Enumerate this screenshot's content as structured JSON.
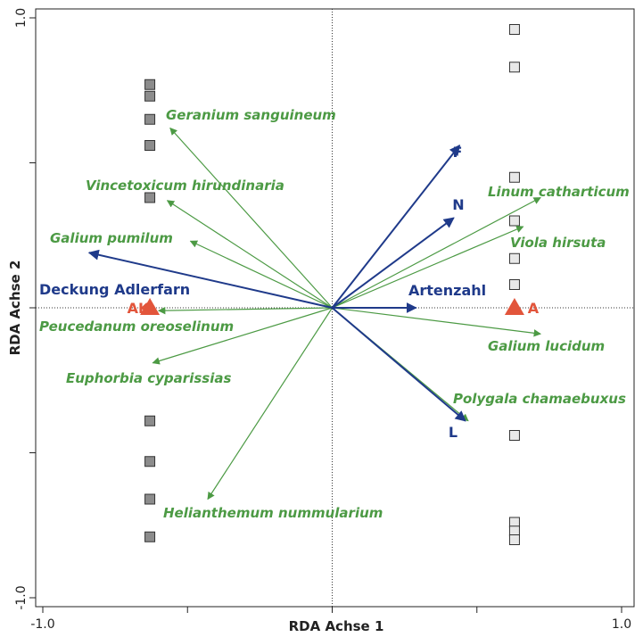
{
  "chart_data": {
    "type": "scatter",
    "title": "",
    "xlabel": "RDA Achse 1",
    "ylabel": "RDA Achse 2",
    "xlim": [
      -1.0,
      1.0
    ],
    "ylim": [
      -1.0,
      1.0
    ],
    "x_tick_values": [
      -1.0,
      -0.5,
      0,
      0.5,
      1.0
    ],
    "y_tick_values": [
      -1.0,
      -0.5,
      0,
      0.5,
      1.0
    ],
    "x_tick_labels": [
      "-1.0",
      "",
      "",
      "",
      "1.0"
    ],
    "y_tick_labels": [
      "-1.0",
      "",
      "",
      "",
      "1.0"
    ],
    "grid": false,
    "colors": {
      "species": "#4c9a44",
      "environment": "#1f3a8a",
      "centroid": "#e2553b",
      "site_group_ak": "#8c8c8c",
      "site_group_a": "#e8e8e8"
    },
    "species_arrows": [
      {
        "name": "Geranium sanguineum",
        "x": -0.56,
        "y": 0.62
      },
      {
        "name": "Vincetoxicum hirundinaria",
        "x": -0.57,
        "y": 0.37
      },
      {
        "name": "Galium pumilum",
        "x": -0.49,
        "y": 0.23
      },
      {
        "name": "Peucedanum oreoselinum",
        "x": -0.6,
        "y": -0.01
      },
      {
        "name": "Euphorbia cyparissias",
        "x": -0.62,
        "y": -0.19
      },
      {
        "name": "Helianthemum nummularium",
        "x": -0.43,
        "y": -0.66
      },
      {
        "name": "Linum catharticum",
        "x": 0.72,
        "y": 0.38
      },
      {
        "name": "Viola hirsuta",
        "x": 0.66,
        "y": 0.28
      },
      {
        "name": "Galium lucidum",
        "x": 0.72,
        "y": -0.09
      },
      {
        "name": "Polygala chamaebuxus",
        "x": 0.47,
        "y": -0.39
      }
    ],
    "environment_arrows": [
      {
        "name": "Deckung Adlerfarn",
        "x": -0.84,
        "y": 0.19
      },
      {
        "name": "Artenzahl",
        "x": 0.29,
        "y": 0.0
      },
      {
        "name": "F",
        "x": 0.44,
        "y": 0.56
      },
      {
        "name": "N",
        "x": 0.42,
        "y": 0.31
      },
      {
        "name": "L",
        "x": 0.46,
        "y": -0.39
      }
    ],
    "centroids": [
      {
        "name": "AK",
        "x": -0.63,
        "y": 0.0
      },
      {
        "name": "A",
        "x": 0.63,
        "y": 0.0
      }
    ],
    "sites": [
      {
        "group": "AK",
        "x": -0.63,
        "y": 0.77
      },
      {
        "group": "AK",
        "x": -0.63,
        "y": 0.73
      },
      {
        "group": "AK",
        "x": -0.63,
        "y": 0.65
      },
      {
        "group": "AK",
        "x": -0.63,
        "y": 0.56
      },
      {
        "group": "AK",
        "x": -0.63,
        "y": 0.38
      },
      {
        "group": "AK",
        "x": -0.63,
        "y": -0.39
      },
      {
        "group": "AK",
        "x": -0.63,
        "y": -0.53
      },
      {
        "group": "AK",
        "x": -0.63,
        "y": -0.66
      },
      {
        "group": "AK",
        "x": -0.63,
        "y": -0.79
      },
      {
        "group": "A",
        "x": 0.63,
        "y": 0.96
      },
      {
        "group": "A",
        "x": 0.63,
        "y": 0.83
      },
      {
        "group": "A",
        "x": 0.63,
        "y": 0.45
      },
      {
        "group": "A",
        "x": 0.63,
        "y": 0.3
      },
      {
        "group": "A",
        "x": 0.63,
        "y": 0.17
      },
      {
        "group": "A",
        "x": 0.63,
        "y": 0.08
      },
      {
        "group": "A",
        "x": 0.63,
        "y": -0.44
      },
      {
        "group": "A",
        "x": 0.63,
        "y": -0.74
      },
      {
        "group": "A",
        "x": 0.63,
        "y": -0.77
      },
      {
        "group": "A",
        "x": 0.63,
        "y": -0.8
      }
    ]
  }
}
